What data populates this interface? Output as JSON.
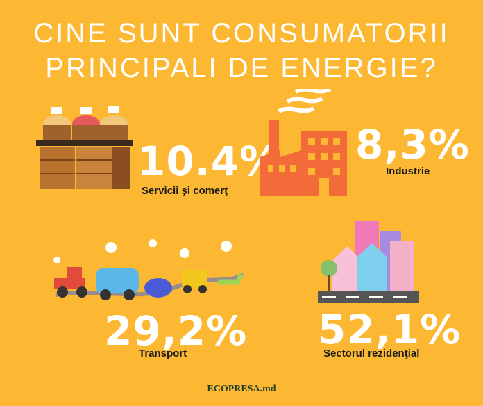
{
  "header": {
    "title_lines": [
      "CINE SUNT CONSUMATORII",
      "PRINCIPALI DE ENERGIE?"
    ]
  },
  "items": [
    {
      "percent": "10.4%",
      "label": "Servicii şi comerţ"
    },
    {
      "percent": "8,3%",
      "label": "Industrie"
    },
    {
      "percent": "29,2%",
      "label": "Transport"
    },
    {
      "percent": "52,1%",
      "label": "Sectorul rezidenţial"
    }
  ],
  "footer": {
    "source": "ECOPRESA.md"
  }
}
